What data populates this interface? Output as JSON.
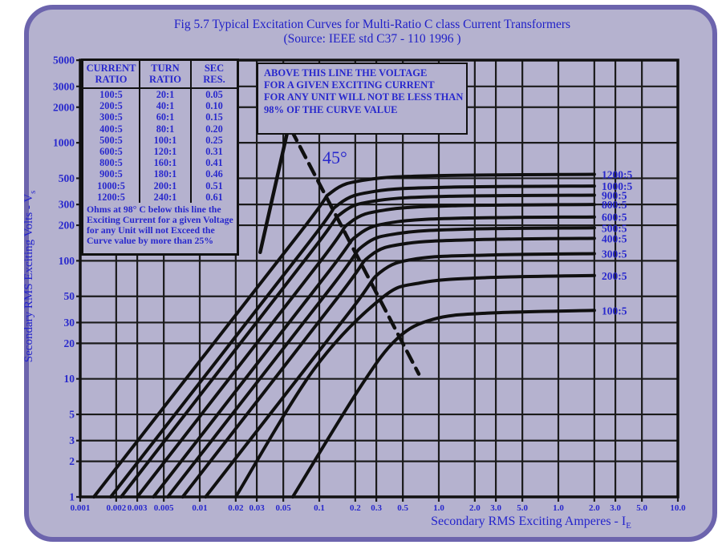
{
  "title": {
    "line1": "Fig 5.7 Typical Excitation Curves for Multi-Ratio C class Current Transformers",
    "line2": "(Source: IEEE std C37 - 110 1996 )"
  },
  "colors": {
    "panel_fill": "#b5b2cf",
    "panel_border": "#6c64ad",
    "text_blue": "#2828cd",
    "ink": "#101010",
    "page_bg": "#ffffff"
  },
  "ratio_table": {
    "headers": [
      "CURRENT\nRATIO",
      "TURN\nRATIO",
      "SEC\nRES."
    ],
    "rows": [
      [
        "100:5",
        "20:1",
        "0.05"
      ],
      [
        "200:5",
        "40:1",
        "0.10"
      ],
      [
        "300:5",
        "60:1",
        "0.15"
      ],
      [
        "400:5",
        "80:1",
        "0.20"
      ],
      [
        "500:5",
        "100:1",
        "0.25"
      ],
      [
        "600:5",
        "120:1",
        "0.31"
      ],
      [
        "800:5",
        "160:1",
        "0.41"
      ],
      [
        "900:5",
        "180:1",
        "0.46"
      ],
      [
        "1000:5",
        "200:1",
        "0.51"
      ],
      [
        "1200:5",
        "240:1",
        "0.61"
      ]
    ]
  },
  "table_note": "Ohms at 98° C below this line the Exciting Current for a given Voltage for any Unit will not Exceed the Curve value by more than 25%",
  "annotation": "ABOVE THIS LINE THE VOLTAGE\nFOR A GIVEN EXCITING CURRENT\nFOR ANY UNIT WILL NOT BE LESS THAN\n98% OF THE CURVE VALUE",
  "deg45_label": "45°",
  "x_axis": {
    "title": "Secondary RMS Exciting Amperes - I",
    "title_sub": "E"
  },
  "y_axis": {
    "title": "Secondary RMS Exciting Volts - V",
    "title_sub": "s"
  },
  "chart_data": {
    "type": "line",
    "x_scale": "log",
    "y_scale": "log",
    "xlabel": "Secondary RMS Exciting Amperes - IE",
    "ylabel": "Secondary RMS Exciting Volts - Vs",
    "ylim": [
      1,
      5000
    ],
    "xlim": [
      0.001,
      100
    ],
    "grid": true,
    "x_tick_labels": [
      "0.001",
      "0.002",
      "0.003",
      "0.005",
      "0.01",
      "0.02",
      "0.03",
      "0.05",
      "0.1",
      "0.2",
      "0.3",
      "0.5",
      "1.0",
      "2.0",
      "3.0",
      "5.0",
      "1.0",
      "2.0",
      "3.0",
      "5.0",
      "10.0"
    ],
    "y_tick_labels": [
      "1",
      "2",
      "3",
      "5",
      "10",
      "20",
      "30",
      "50",
      "100",
      "200",
      "300",
      "500",
      "1000",
      "2000",
      "3000",
      "5000"
    ],
    "series": [
      {
        "name": "1200:5",
        "saturation_volts": 540,
        "points": [
          [
            0.0013,
            1
          ],
          [
            0.068,
            170
          ],
          [
            0.126,
            380
          ],
          [
            0.25,
            486
          ],
          [
            1.0,
            527
          ],
          [
            20,
            540
          ]
        ]
      },
      {
        "name": "1000:5",
        "saturation_volts": 430,
        "points": [
          [
            0.0018,
            1
          ],
          [
            0.078,
            134
          ],
          [
            0.145,
            300
          ],
          [
            0.29,
            387
          ],
          [
            1.15,
            420
          ],
          [
            20,
            430
          ]
        ]
      },
      {
        "name": "900:5",
        "saturation_volts": 360,
        "points": [
          [
            0.0022,
            1
          ],
          [
            0.083,
            114
          ],
          [
            0.155,
            255
          ],
          [
            0.31,
            324
          ],
          [
            1.23,
            352
          ],
          [
            20,
            360
          ]
        ]
      },
      {
        "name": "800:5",
        "saturation_volts": 300,
        "points": [
          [
            0.003,
            1
          ],
          [
            0.098,
            94
          ],
          [
            0.18,
            210
          ],
          [
            0.36,
            270
          ],
          [
            1.44,
            293
          ],
          [
            20,
            300
          ]
        ]
      },
      {
        "name": "600:5",
        "saturation_volts": 235,
        "points": [
          [
            0.0041,
            1
          ],
          [
            0.112,
            74
          ],
          [
            0.21,
            165
          ],
          [
            0.42,
            212
          ],
          [
            1.66,
            230
          ],
          [
            20,
            235
          ]
        ]
      },
      {
        "name": "500:5",
        "saturation_volts": 190,
        "points": [
          [
            0.0054,
            1
          ],
          [
            0.126,
            60
          ],
          [
            0.235,
            135
          ],
          [
            0.47,
            171
          ],
          [
            1.86,
            186
          ],
          [
            20,
            190
          ]
        ]
      },
      {
        "name": "400:5",
        "saturation_volts": 155,
        "points": [
          [
            0.0072,
            1
          ],
          [
            0.143,
            49
          ],
          [
            0.266,
            110
          ],
          [
            0.53,
            140
          ],
          [
            2.1,
            151
          ],
          [
            20,
            155
          ]
        ]
      },
      {
        "name": "300:5",
        "saturation_volts": 115,
        "points": [
          [
            0.0112,
            1
          ],
          [
            0.174,
            35.5
          ],
          [
            0.324,
            80
          ],
          [
            0.65,
            104
          ],
          [
            2.6,
            112
          ],
          [
            20,
            115
          ]
        ]
      },
      {
        "name": "200:5",
        "saturation_volts": 75,
        "points": [
          [
            0.02,
            1
          ],
          [
            0.09,
            12
          ],
          [
            0.33,
            48
          ],
          [
            0.7,
            65
          ],
          [
            2.5,
            72
          ],
          [
            20,
            75
          ]
        ]
      },
      {
        "name": "100:5",
        "saturation_volts": 38,
        "points": [
          [
            0.06,
            1
          ],
          [
            0.22,
            8.5
          ],
          [
            0.45,
            22
          ],
          [
            0.9,
            32
          ],
          [
            2.5,
            36
          ],
          [
            20,
            38
          ]
        ]
      }
    ],
    "guides": {
      "tangent_dashed": {
        "style": "dashed",
        "points": [
          [
            0.049,
            1800
          ],
          [
            0.68,
            11
          ]
        ]
      },
      "tangent_solid": {
        "style": "solid",
        "points": [
          [
            0.032,
            118
          ],
          [
            0.057,
            1560
          ]
        ]
      }
    }
  }
}
